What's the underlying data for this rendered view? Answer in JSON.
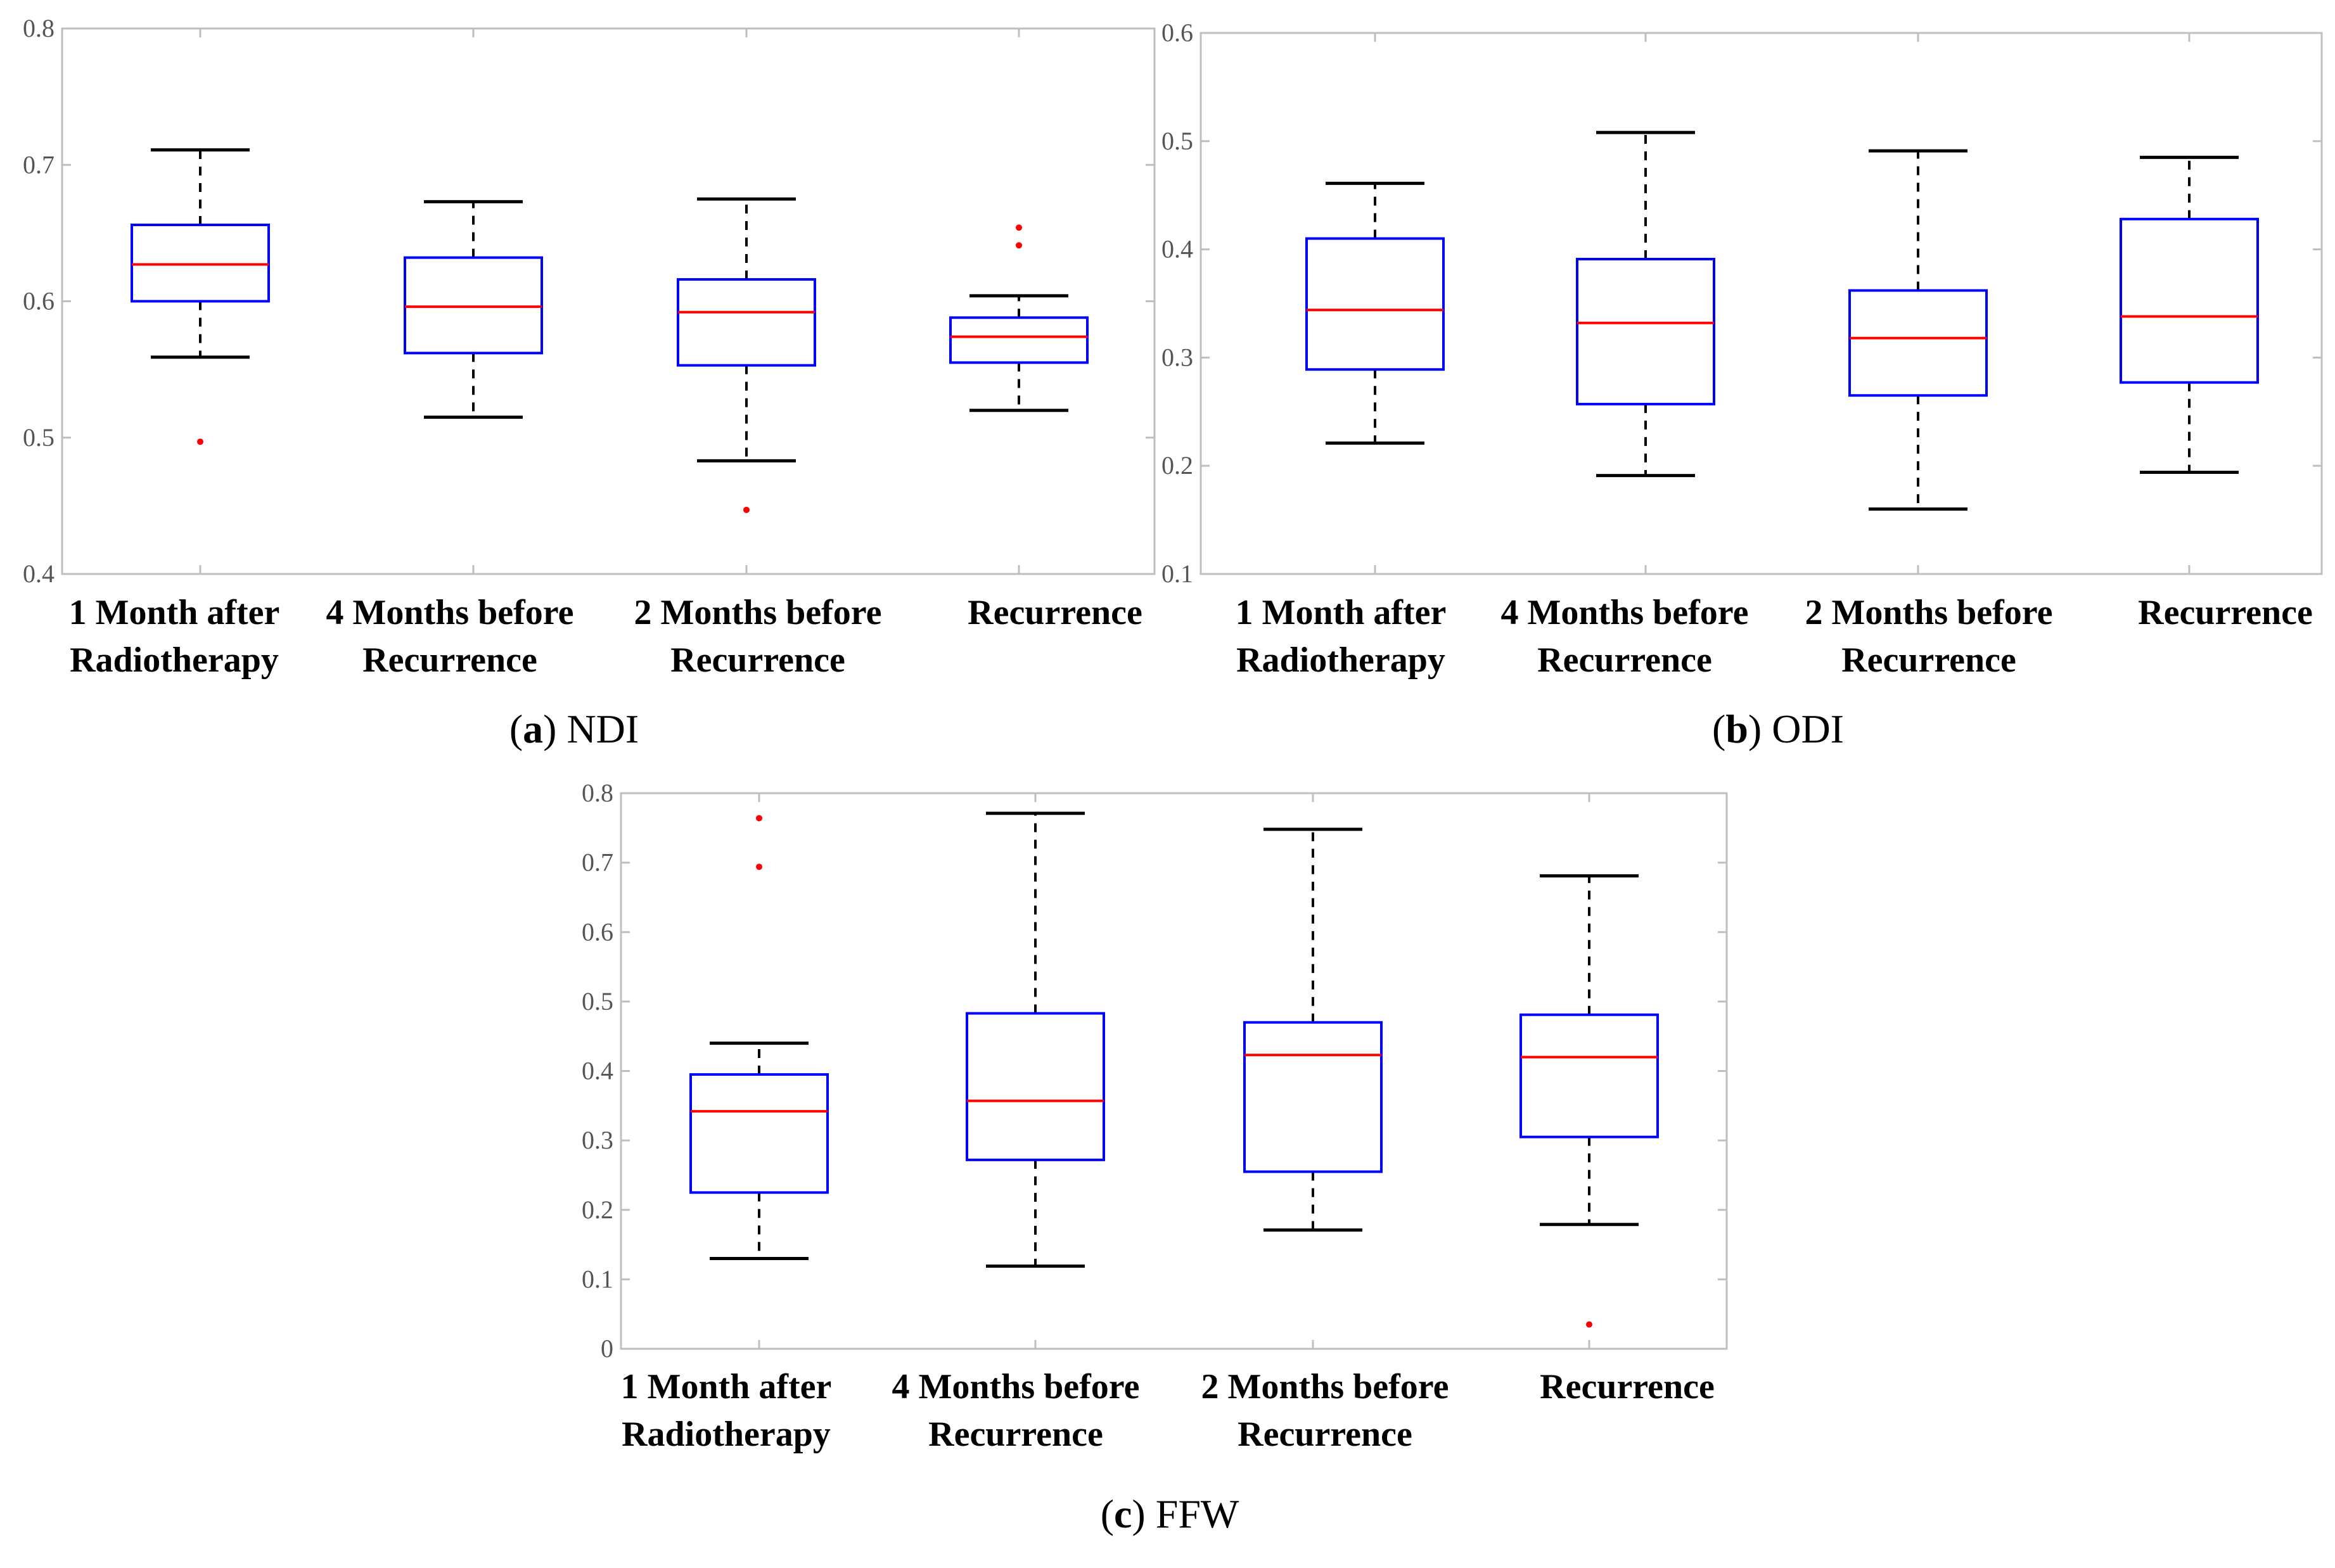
{
  "chart_data": [
    {
      "type": "box",
      "panel": "a",
      "caption_label": "a",
      "caption_text": "NDI",
      "title": "",
      "xlabel": "",
      "ylabel": "",
      "ylim": [
        0.4,
        0.8
      ],
      "yticks": [
        "0.4",
        "0.5",
        "0.6",
        "0.7",
        "0.8"
      ],
      "categories": [
        [
          "1 Month after",
          "Radiotherapy"
        ],
        [
          "4 Months before",
          "Recurrence"
        ],
        [
          "2 Months before",
          "Recurrence"
        ],
        [
          "Recurrence"
        ]
      ],
      "boxes": [
        {
          "whisker_low": 0.559,
          "q1": 0.6,
          "median": 0.627,
          "q3": 0.656,
          "whisker_high": 0.711,
          "outliers": [
            0.497
          ]
        },
        {
          "whisker_low": 0.515,
          "q1": 0.562,
          "median": 0.596,
          "q3": 0.632,
          "whisker_high": 0.673,
          "outliers": []
        },
        {
          "whisker_low": 0.483,
          "q1": 0.553,
          "median": 0.592,
          "q3": 0.616,
          "whisker_high": 0.675,
          "outliers": [
            0.447
          ]
        },
        {
          "whisker_low": 0.52,
          "q1": 0.555,
          "median": 0.574,
          "q3": 0.588,
          "whisker_high": 0.604,
          "outliers": [
            0.641,
            0.654
          ]
        }
      ]
    },
    {
      "type": "box",
      "panel": "b",
      "caption_label": "b",
      "caption_text": "ODI",
      "title": "",
      "xlabel": "",
      "ylabel": "",
      "ylim": [
        0.1,
        0.6
      ],
      "yticks": [
        "0.1",
        "0.2",
        "0.3",
        "0.4",
        "0.5",
        "0.6"
      ],
      "categories": [
        [
          "1 Month after",
          "Radiotherapy"
        ],
        [
          "4 Months before",
          "Recurrence"
        ],
        [
          "2 Months before",
          "Recurrence"
        ],
        [
          "Recurrence"
        ]
      ],
      "boxes": [
        {
          "whisker_low": 0.221,
          "q1": 0.289,
          "median": 0.344,
          "q3": 0.41,
          "whisker_high": 0.461,
          "outliers": []
        },
        {
          "whisker_low": 0.191,
          "q1": 0.257,
          "median": 0.332,
          "q3": 0.391,
          "whisker_high": 0.508,
          "outliers": []
        },
        {
          "whisker_low": 0.16,
          "q1": 0.265,
          "median": 0.318,
          "q3": 0.362,
          "whisker_high": 0.491,
          "outliers": []
        },
        {
          "whisker_low": 0.194,
          "q1": 0.277,
          "median": 0.338,
          "q3": 0.428,
          "whisker_high": 0.485,
          "outliers": []
        }
      ]
    },
    {
      "type": "box",
      "panel": "c",
      "caption_label": "c",
      "caption_text": "FFW",
      "title": "",
      "xlabel": "",
      "ylabel": "",
      "ylim": [
        0,
        0.8
      ],
      "yticks": [
        "0",
        "0.1",
        "0.2",
        "0.3",
        "0.4",
        "0.5",
        "0.6",
        "0.7",
        "0.8"
      ],
      "categories": [
        [
          "1 Month after",
          "Radiotherapy"
        ],
        [
          "4 Months before",
          "Recurrence"
        ],
        [
          "2 Months before",
          "Recurrence"
        ],
        [
          "Recurrence"
        ]
      ],
      "boxes": [
        {
          "whisker_low": 0.13,
          "q1": 0.225,
          "median": 0.342,
          "q3": 0.395,
          "whisker_high": 0.44,
          "outliers": [
            0.694,
            0.764
          ]
        },
        {
          "whisker_low": 0.119,
          "q1": 0.272,
          "median": 0.357,
          "q3": 0.483,
          "whisker_high": 0.771,
          "outliers": []
        },
        {
          "whisker_low": 0.171,
          "q1": 0.255,
          "median": 0.423,
          "q3": 0.47,
          "whisker_high": 0.748,
          "outliers": []
        },
        {
          "whisker_low": 0.179,
          "q1": 0.305,
          "median": 0.42,
          "q3": 0.481,
          "whisker_high": 0.681,
          "outliers": [
            0.035
          ]
        }
      ]
    }
  ],
  "colors": {
    "box": "#0000ff",
    "median": "#ff0000",
    "whisker": "#000000",
    "outlier": "#ff0000",
    "axes": "#bfbfbf",
    "tick_text": "#555555"
  }
}
